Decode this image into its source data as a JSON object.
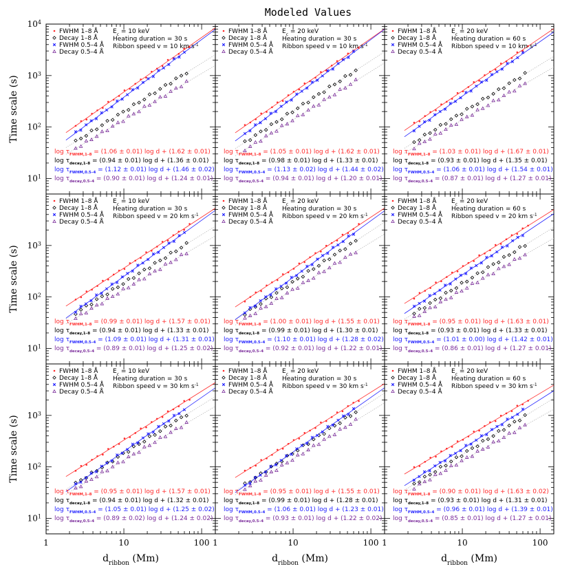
{
  "title": "Modeled Values",
  "xlabel": "d",
  "xlabel_sub": "ribbon",
  "xlabel_unit": " (Mm)",
  "ylabel": "Time scale (s)",
  "x_ticks": [
    "1",
    "10",
    "100"
  ],
  "y_ticks": [
    "10",
    "10",
    "10",
    "10"
  ],
  "y_tick_exps": [
    "1",
    "2",
    "3",
    "4"
  ],
  "legend": [
    {
      "label": "FWHM 1–8 Å",
      "color": "#ff2a2a",
      "marker": "dot"
    },
    {
      "label": "Decay 1–8 Å",
      "color": "#000000",
      "marker": "diamond"
    },
    {
      "label": "FWHM 0.5–4 Å",
      "color": "#2020ff",
      "marker": "x"
    },
    {
      "label": "Decay 0.5–4 Å",
      "color": "#7a2a9a",
      "marker": "triangle"
    }
  ],
  "eq_log": "log τ",
  "eq_subs": [
    "FWHM,1–8",
    "decay,1–8",
    "FWHM,0.5–4",
    "decay,0.5–4"
  ],
  "eq_mid": " log d + ",
  "param_labels": {
    "energy": "E",
    "energy_sub": "c",
    "duration": "Heating duration",
    "speed": "Ribbon speed v",
    "speed_unit": "km s",
    "speed_exp": "-1"
  },
  "chart_data": [
    {
      "type": "scatter",
      "row": 0,
      "col": 0,
      "energy": "= 10 keV",
      "duration": "= 30 s",
      "speed": "= 10",
      "xlim": [
        1,
        150
      ],
      "ylim": [
        5,
        10000
      ],
      "x_log": true,
      "y_log": true,
      "equations": [
        "= (1.06 ± 0.01)",
        "= (0.94 ± 0.01)",
        "= (1.12 ± 0.01)",
        "= (0.90 ± 0.01)"
      ],
      "intercepts": [
        "(1.62 ± 0.01)",
        "(1.36 ± 0.01)",
        "(1.46 ± 0.02)",
        "(1.24 ± 0.01)"
      ],
      "fits": [
        [
          1.06,
          1.62
        ],
        [
          0.94,
          1.36
        ],
        [
          1.12,
          1.46
        ],
        [
          0.9,
          1.24
        ]
      ]
    },
    {
      "type": "scatter",
      "row": 0,
      "col": 1,
      "energy": "= 20 keV",
      "duration": "= 30 s",
      "speed": "= 10",
      "xlim": [
        1,
        150
      ],
      "ylim": [
        5,
        10000
      ],
      "x_log": true,
      "y_log": true,
      "equations": [
        "= (1.05 ± 0.01)",
        "= (0.98 ± 0.01)",
        "= (1.13 ± 0.02)",
        "= (0.94 ± 0.01)"
      ],
      "intercepts": [
        "(1.62 ± 0.01)",
        "(1.33 ± 0.01)",
        "(1.44 ± 0.02)",
        "(1.20 ± 0.01)"
      ],
      "fits": [
        [
          1.05,
          1.62
        ],
        [
          0.98,
          1.33
        ],
        [
          1.13,
          1.44
        ],
        [
          0.94,
          1.2
        ]
      ]
    },
    {
      "type": "scatter",
      "row": 0,
      "col": 2,
      "energy": "= 20 keV",
      "duration": "= 60 s",
      "speed": "= 10",
      "xlim": [
        1,
        150
      ],
      "ylim": [
        5,
        10000
      ],
      "x_log": true,
      "y_log": true,
      "equations": [
        "= (1.03 ± 0.01)",
        "= (0.93 ± 0.01)",
        "= (1.06 ± 0.01)",
        "= (0.87 ± 0.01)"
      ],
      "intercepts": [
        "(1.67 ± 0.01)",
        "(1.35 ± 0.01)",
        "(1.54 ± 0.01)",
        "(1.27 ± 0.01)"
      ],
      "fits": [
        [
          1.03,
          1.67
        ],
        [
          0.93,
          1.35
        ],
        [
          1.06,
          1.54
        ],
        [
          0.87,
          1.27
        ]
      ]
    },
    {
      "type": "scatter",
      "row": 1,
      "col": 0,
      "energy": "= 10 keV",
      "duration": "= 30 s",
      "speed": "= 20",
      "xlim": [
        1,
        150
      ],
      "ylim": [
        5,
        10000
      ],
      "x_log": true,
      "y_log": true,
      "equations": [
        "= (0.99 ± 0.01)",
        "= (0.94 ± 0.01)",
        "= (1.09 ± 0.01)",
        "= (0.89 ± 0.01)"
      ],
      "intercepts": [
        "(1.57 ± 0.01)",
        "(1.33 ± 0.01)",
        "(1.31 ± 0.01)",
        "(1.25 ± 0.02)"
      ],
      "fits": [
        [
          0.99,
          1.57
        ],
        [
          0.94,
          1.33
        ],
        [
          1.09,
          1.31
        ],
        [
          0.89,
          1.25
        ]
      ]
    },
    {
      "type": "scatter",
      "row": 1,
      "col": 1,
      "energy": "= 20 keV",
      "duration": "= 30 s",
      "speed": "= 20",
      "xlim": [
        1,
        150
      ],
      "ylim": [
        5,
        10000
      ],
      "x_log": true,
      "y_log": true,
      "equations": [
        "= (1.00 ± 0.01)",
        "= (0.99 ± 0.01)",
        "= (1.10 ± 0.01)",
        "= (0.92 ± 0.01)"
      ],
      "intercepts": [
        "(1.55 ± 0.01)",
        "(1.30 ± 0.01)",
        "(1.28 ± 0.02)",
        "(1.22 ± 0.01)"
      ],
      "fits": [
        [
          1.0,
          1.55
        ],
        [
          0.99,
          1.3
        ],
        [
          1.1,
          1.28
        ],
        [
          0.92,
          1.22
        ]
      ]
    },
    {
      "type": "scatter",
      "row": 1,
      "col": 2,
      "energy": "= 20 keV",
      "duration": "= 60 s",
      "speed": "= 20",
      "xlim": [
        1,
        150
      ],
      "ylim": [
        5,
        10000
      ],
      "x_log": true,
      "y_log": true,
      "equations": [
        "= (0.95 ± 0.01)",
        "= (0.93 ± 0.01)",
        "= (1.01 ± 0.00)",
        "= (0.86 ± 0.01)"
      ],
      "intercepts": [
        "(1.63 ± 0.01)",
        "(1.33 ± 0.01)",
        "(1.42 ± 0.01)",
        "(1.27 ± 0.01)"
      ],
      "fits": [
        [
          0.95,
          1.63
        ],
        [
          0.93,
          1.33
        ],
        [
          1.01,
          1.42
        ],
        [
          0.86,
          1.27
        ]
      ]
    },
    {
      "type": "scatter",
      "row": 2,
      "col": 0,
      "energy": "= 10 keV",
      "duration": "= 30 s",
      "speed": "= 30",
      "xlim": [
        1,
        150
      ],
      "ylim": [
        5,
        10000
      ],
      "x_log": true,
      "y_log": true,
      "equations": [
        "= (0.95 ± 0.01)",
        "= (0.94 ± 0.01)",
        "= (1.05 ± 0.01)",
        "= (0.89 ± 0.02)"
      ],
      "intercepts": [
        "(1.57 ± 0.01)",
        "(1.32 ± 0.01)",
        "(1.25 ± 0.02)",
        "(1.24 ± 0.02)"
      ],
      "fits": [
        [
          0.95,
          1.57
        ],
        [
          0.94,
          1.32
        ],
        [
          1.05,
          1.25
        ],
        [
          0.89,
          1.24
        ]
      ]
    },
    {
      "type": "scatter",
      "row": 2,
      "col": 1,
      "energy": "= 20 keV",
      "duration": "= 30 s",
      "speed": "= 30",
      "xlim": [
        1,
        150
      ],
      "ylim": [
        5,
        10000
      ],
      "x_log": true,
      "y_log": true,
      "equations": [
        "= (0.95 ± 0.01)",
        "= (0.99 ± 0.01)",
        "= (1.06 ± 0.01)",
        "= (0.93 ± 0.01)"
      ],
      "intercepts": [
        "(1.55 ± 0.01)",
        "(1.28 ± 0.01)",
        "(1.23 ± 0.01)",
        "(1.22 ± 0.02)"
      ],
      "fits": [
        [
          0.95,
          1.55
        ],
        [
          0.99,
          1.28
        ],
        [
          1.06,
          1.23
        ],
        [
          0.93,
          1.22
        ]
      ]
    },
    {
      "type": "scatter",
      "row": 2,
      "col": 2,
      "energy": "= 20 keV",
      "duration": "= 60 s",
      "speed": "= 30",
      "xlim": [
        1,
        150
      ],
      "ylim": [
        5,
        10000
      ],
      "x_log": true,
      "y_log": true,
      "equations": [
        "= (0.90 ± 0.01)",
        "= (0.93 ± 0.01)",
        "= (0.96 ± 0.01)",
        "= (0.85 ± 0.01)"
      ],
      "intercepts": [
        "(1.63 ± 0.02)",
        "(1.31 ± 0.01)",
        "(1.39 ± 0.01)",
        "(1.27 ± 0.01)"
      ],
      "fits": [
        [
          0.9,
          1.63
        ],
        [
          0.93,
          1.31
        ],
        [
          0.96,
          1.39
        ],
        [
          0.85,
          1.27
        ]
      ]
    }
  ]
}
